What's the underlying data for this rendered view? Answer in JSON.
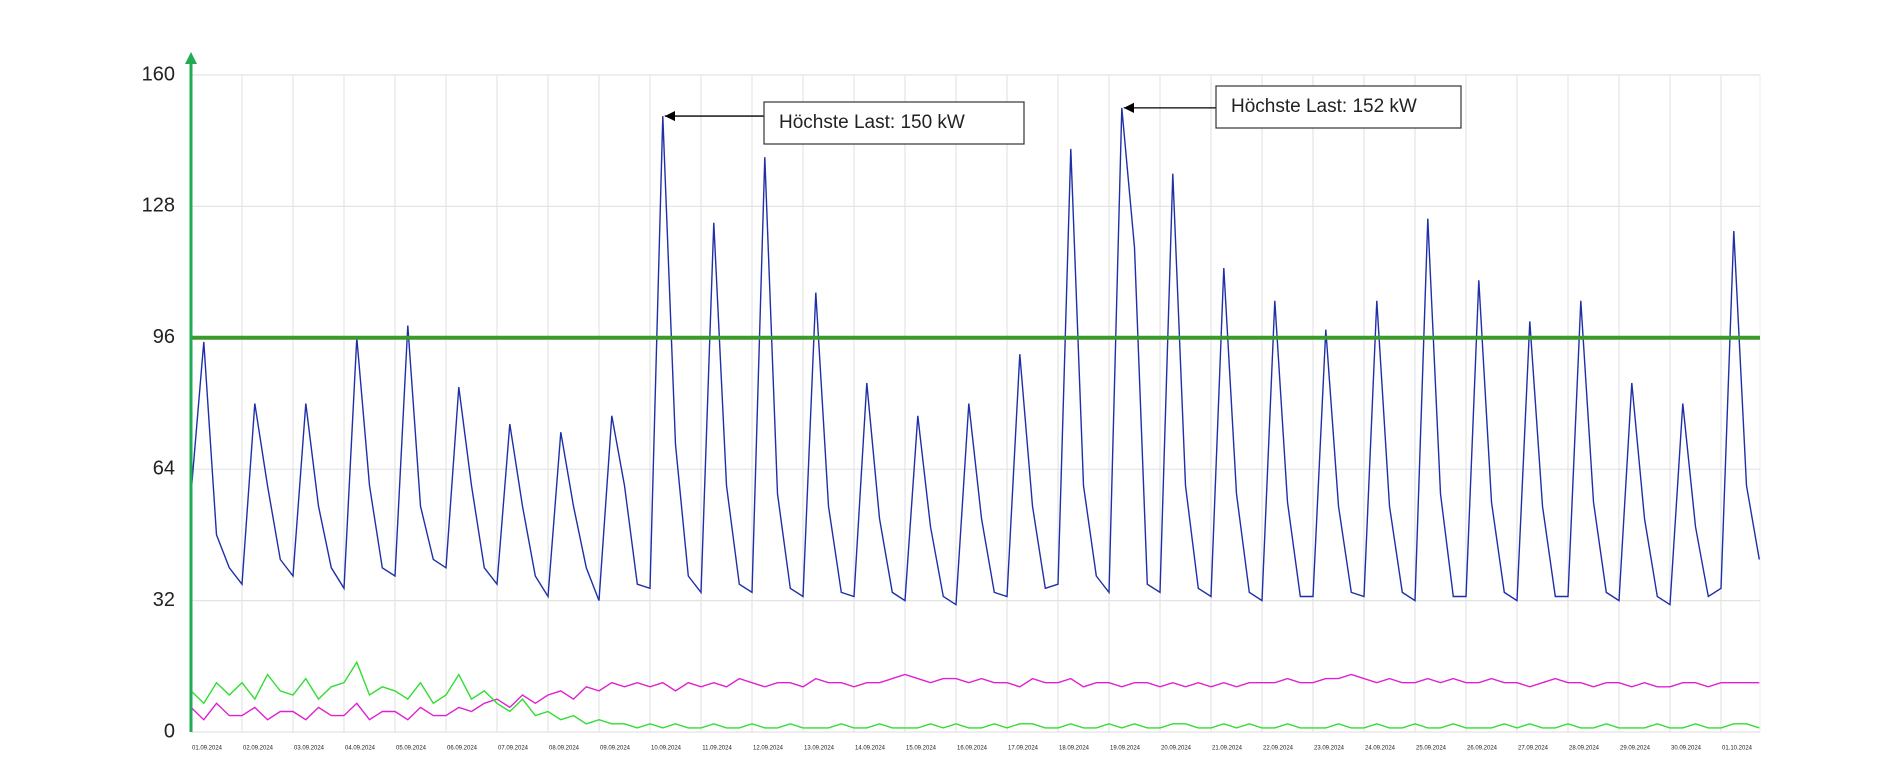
{
  "chart_data": {
    "type": "line",
    "categories": [
      "01.09.2024",
      null,
      null,
      null,
      "02.09.2024",
      null,
      null,
      null,
      "03.09.2024",
      null,
      null,
      null,
      "04.09.2024",
      null,
      null,
      null,
      "05.09.2024",
      null,
      null,
      null,
      "06.09.2024",
      null,
      null,
      null,
      "07.09.2024",
      null,
      null,
      null,
      "08.09.2024",
      null,
      null,
      null,
      "09.09.2024",
      null,
      null,
      null,
      "10.09.2024",
      null,
      null,
      null,
      "11.09.2024",
      null,
      null,
      null,
      "12.09.2024",
      null,
      null,
      null,
      "13.09.2024",
      null,
      null,
      null,
      "14.09.2024",
      null,
      null,
      null,
      "15.09.2024",
      null,
      null,
      null,
      "16.09.2024",
      null,
      null,
      null,
      "17.09.2024",
      null,
      null,
      null,
      "18.09.2024",
      null,
      null,
      null,
      "19.09.2024",
      null,
      null,
      null,
      "20.09.2024",
      null,
      null,
      null,
      "21.09.2024",
      null,
      null,
      null,
      "22.09.2024",
      null,
      null,
      null,
      "23.09.2024",
      null,
      null,
      null,
      "24.09.2024",
      null,
      null,
      null,
      "25.09.2024",
      null,
      null,
      null,
      "26.09.2024",
      null,
      null,
      null,
      "27.09.2024",
      null,
      null,
      null,
      "28.09.2024",
      null,
      null,
      null,
      "29.09.2024",
      null,
      null,
      null,
      "30.09.2024",
      null,
      null,
      null,
      "01.10.2024",
      null,
      null,
      null
    ],
    "series": [
      {
        "color": "#1f2fa8",
        "values": [
          58,
          95,
          48,
          40,
          36,
          80,
          60,
          42,
          38,
          80,
          55,
          40,
          35,
          96,
          60,
          40,
          38,
          99,
          55,
          42,
          40,
          84,
          60,
          40,
          36,
          75,
          55,
          38,
          33,
          73,
          55,
          40,
          32,
          77,
          60,
          36,
          35,
          150,
          70,
          38,
          34,
          124,
          60,
          36,
          34,
          140,
          58,
          35,
          33,
          107,
          55,
          34,
          33,
          85,
          52,
          34,
          32,
          77,
          50,
          33,
          31,
          80,
          52,
          34,
          33,
          92,
          55,
          35,
          36,
          142,
          60,
          38,
          34,
          152,
          118,
          36,
          34,
          136,
          60,
          35,
          33,
          113,
          58,
          34,
          32,
          105,
          56,
          33,
          33,
          98,
          55,
          34,
          33,
          105,
          55,
          34,
          32,
          125,
          58,
          33,
          33,
          110,
          56,
          34,
          32,
          100,
          55,
          33,
          33,
          105,
          56,
          34,
          32,
          85,
          52,
          33,
          31,
          80,
          50,
          33,
          35,
          122,
          60,
          42
        ]
      },
      {
        "color": "#e020d0",
        "values": [
          6,
          3,
          7,
          4,
          4,
          6,
          3,
          5,
          5,
          3,
          6,
          4,
          4,
          7,
          3,
          5,
          5,
          3,
          6,
          4,
          4,
          6,
          5,
          7,
          8,
          6,
          9,
          7,
          9,
          10,
          8,
          11,
          10,
          12,
          11,
          12,
          11,
          12,
          10,
          12,
          11,
          12,
          11,
          13,
          12,
          11,
          12,
          12,
          11,
          13,
          12,
          12,
          11,
          12,
          12,
          13,
          14,
          13,
          12,
          13,
          13,
          12,
          13,
          12,
          12,
          11,
          13,
          12,
          12,
          13,
          11,
          12,
          12,
          11,
          12,
          12,
          11,
          12,
          11,
          12,
          11,
          12,
          11,
          12,
          12,
          12,
          13,
          12,
          12,
          13,
          13,
          14,
          13,
          12,
          13,
          12,
          12,
          13,
          12,
          13,
          12,
          12,
          13,
          12,
          12,
          11,
          12,
          13,
          12,
          12,
          11,
          12,
          12,
          11,
          12,
          11,
          11,
          12,
          12,
          11,
          12,
          12,
          12,
          12
        ]
      },
      {
        "color": "#33dd33",
        "values": [
          10,
          7,
          12,
          9,
          12,
          8,
          14,
          10,
          9,
          13,
          8,
          11,
          12,
          17,
          9,
          11,
          10,
          8,
          12,
          7,
          9,
          14,
          8,
          10,
          7,
          5,
          8,
          4,
          5,
          3,
          4,
          2,
          3,
          2,
          2,
          1,
          2,
          1,
          2,
          1,
          1,
          2,
          1,
          1,
          2,
          1,
          1,
          2,
          1,
          1,
          1,
          2,
          1,
          1,
          2,
          1,
          1,
          1,
          2,
          1,
          2,
          1,
          1,
          2,
          1,
          2,
          2,
          1,
          1,
          2,
          1,
          1,
          2,
          1,
          2,
          1,
          1,
          2,
          2,
          1,
          1,
          2,
          1,
          2,
          1,
          1,
          2,
          1,
          1,
          1,
          2,
          1,
          1,
          2,
          1,
          1,
          2,
          1,
          1,
          2,
          1,
          1,
          1,
          2,
          1,
          2,
          1,
          1,
          2,
          1,
          1,
          2,
          1,
          1,
          1,
          2,
          1,
          1,
          2,
          1,
          1,
          2,
          2,
          1
        ]
      }
    ],
    "threshold": {
      "value": 96,
      "color": "#3a9a2a"
    },
    "annotations": [
      {
        "text": "Höchste Last: 150 kW"
      },
      {
        "text": "Höchste Last: 152 kW"
      }
    ],
    "ylim": [
      0,
      160
    ],
    "yticks": [
      0,
      32,
      64,
      96,
      128,
      160
    ],
    "grid": true,
    "axis_color": "#22aa55"
  }
}
